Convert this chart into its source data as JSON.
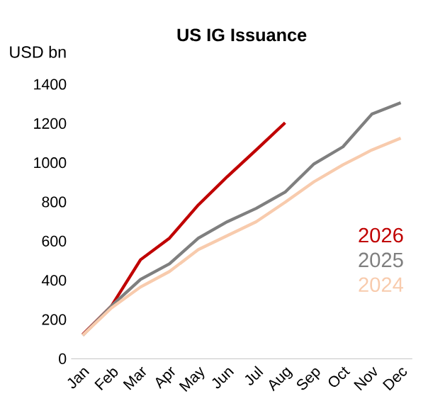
{
  "chart_data": {
    "type": "line",
    "title": "US IG Issuance",
    "ylabel": "USD bn",
    "categories": [
      "Jan",
      "Feb",
      "Mar",
      "Apr",
      "May",
      "Jun",
      "Jul",
      "Aug",
      "Sep",
      "Oct",
      "Nov",
      "Dec"
    ],
    "ylim": [
      0,
      1400
    ],
    "yticks": [
      0,
      200,
      400,
      600,
      800,
      1000,
      1200,
      1400
    ],
    "grid": false,
    "legend": "right",
    "series": [
      {
        "name": "2026",
        "color": "#c00000",
        "values": [
          123,
          270,
          505,
          615,
          785,
          929,
          1065,
          1204,
          null,
          null,
          null,
          null
        ]
      },
      {
        "name": "2025",
        "color": "#7f7f7f",
        "values": [
          120,
          270,
          405,
          484,
          615,
          699,
          767,
          850,
          994,
          1081,
          1248,
          1306
        ]
      },
      {
        "name": "2024",
        "color": "#f8cbad",
        "values": [
          120,
          260,
          366,
          445,
          557,
          628,
          699,
          798,
          903,
          989,
          1065,
          1125
        ]
      }
    ]
  }
}
